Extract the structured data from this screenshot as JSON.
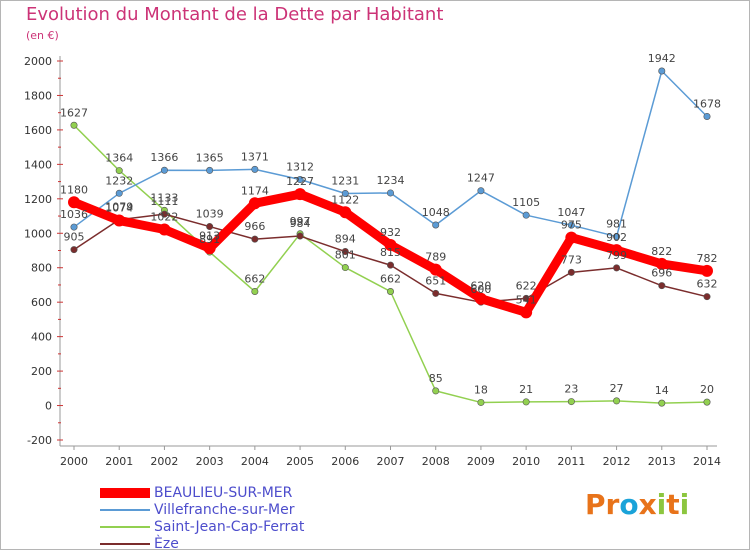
{
  "title": "Evolution du Montant de la Dette par Habitant",
  "subtitle": "(en €)",
  "logo": {
    "text": "Proxiti",
    "colors": [
      "#e8731a",
      "#e8731a",
      "#1aa3d9",
      "#e8731a",
      "#8cc63f",
      "#e8731a",
      "#8cc63f"
    ]
  },
  "chart_data": {
    "type": "line",
    "title": "Evolution du Montant de la Dette par Habitant",
    "ylabel": "(en €)",
    "xlabel": "",
    "x": [
      "2000",
      "2001",
      "2002",
      "2003",
      "2004",
      "2005",
      "2006",
      "2007",
      "2008",
      "2009",
      "2010",
      "2011",
      "2012",
      "2013",
      "2014"
    ],
    "ylim": [
      -200,
      2000
    ],
    "yticks": [
      -200,
      0,
      200,
      400,
      600,
      800,
      1000,
      1200,
      1400,
      1600,
      1800,
      2000
    ],
    "grid": false,
    "legend_position": "bottom-left",
    "series": [
      {
        "name": "BEAULIEU-SUR-MER",
        "color": "#ff0000",
        "values": [
          1180,
          1074,
          1022,
          913,
          1174,
          1227,
          1122,
          932,
          789,
          620,
          541,
          975,
          902,
          822,
          782
        ],
        "labels": [
          "1180",
          "1074",
          "1022",
          "913",
          "1174",
          "1227",
          "1122",
          "932",
          "789",
          "620",
          "541",
          "975",
          "902",
          "822",
          "782"
        ]
      },
      {
        "name": "Villefranche-sur-Mer",
        "color": "#5b9bd5",
        "values": [
          1036,
          1232,
          1366,
          1365,
          1371,
          1312,
          1231,
          1234,
          1048,
          1247,
          1105,
          1047,
          981,
          1942,
          1678
        ],
        "labels": [
          "1036",
          "1232",
          "1366",
          "1365",
          "1371",
          "1312",
          "1231",
          "1234",
          "1048",
          "1247",
          "1105",
          "1047",
          "981",
          "1942",
          "1678"
        ]
      },
      {
        "name": "Saint-Jean-Cap-Ferrat",
        "color": "#92d050",
        "values": [
          1627,
          1364,
          1133,
          891,
          662,
          997,
          801,
          662,
          85,
          18,
          21,
          23,
          27,
          14,
          20
        ],
        "labels": [
          "1627",
          "1364",
          "1133",
          "891",
          "662",
          "997",
          "801",
          "662",
          "85",
          "18",
          "21",
          "23",
          "27",
          "14",
          "20"
        ]
      },
      {
        "name": "Èze",
        "color": "#7b2d2d",
        "values": [
          905,
          1079,
          1111,
          1039,
          966,
          984,
          894,
          815,
          651,
          600,
          622,
          773,
          799,
          696,
          632
        ],
        "labels": [
          "905",
          "1079",
          "1111",
          "1039",
          "966",
          "984",
          "894",
          "815",
          "651",
          "600",
          "622",
          "773",
          "799",
          "696",
          "632"
        ]
      }
    ]
  }
}
